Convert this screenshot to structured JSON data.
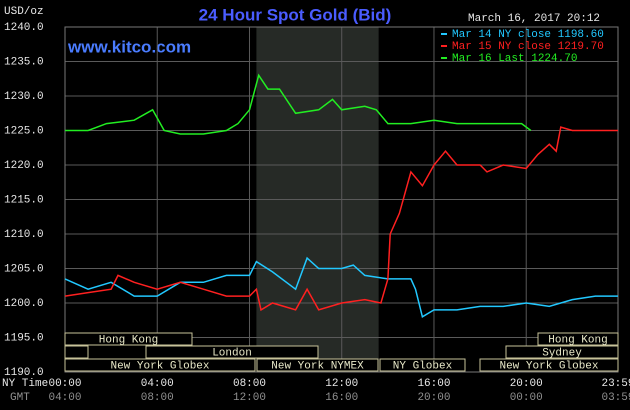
{
  "chart_data": {
    "type": "line",
    "title": "24 Hour Spot Gold (Bid)",
    "unit_label": "USD/oz",
    "timestamp": "March 16, 2017 20:12",
    "site": "www.kitco.com",
    "x_row_label": "NY Time",
    "gmt_row_label": "GMT",
    "gmt_labels": [
      "04:00",
      "08:00",
      "12:00",
      "16:00",
      "20:00",
      "00:00",
      "03:59"
    ],
    "xlim": [
      0,
      23.98
    ],
    "xticks": [
      {
        "value": 0,
        "label": "00:00"
      },
      {
        "value": 4,
        "label": "04:00"
      },
      {
        "value": 8,
        "label": "08:00"
      },
      {
        "value": 12,
        "label": "12:00"
      },
      {
        "value": 16,
        "label": "16:00"
      },
      {
        "value": 20,
        "label": "20:00"
      },
      {
        "value": 23.98,
        "label": "23:59"
      }
    ],
    "ylim": [
      1190,
      1240
    ],
    "yticks": [
      {
        "value": 1190,
        "label": "1190.0"
      },
      {
        "value": 1195,
        "label": "1195.0"
      },
      {
        "value": 1200,
        "label": "1200.0"
      },
      {
        "value": 1205,
        "label": "1205.0"
      },
      {
        "value": 1210,
        "label": "1210.0"
      },
      {
        "value": 1215,
        "label": "1215.0"
      },
      {
        "value": 1220,
        "label": "1220.0"
      },
      {
        "value": 1225,
        "label": "1225.0"
      },
      {
        "value": 1230,
        "label": "1230.0"
      },
      {
        "value": 1235,
        "label": "1235.0"
      },
      {
        "value": 1240,
        "label": "1240.0"
      }
    ],
    "grid": true,
    "shaded_x": [
      8.3,
      13.6
    ],
    "legend": "top-right",
    "sessions": [
      "Hong Kong",
      "Hong Kong",
      "London",
      "Sydney",
      "New York Globex",
      "New York NYMEX",
      "NY Globex",
      "New York Globex"
    ],
    "series": [
      {
        "name": "Mar 14 NY close 1198.60",
        "color": "#22c8ff",
        "x": [
          0,
          1,
          2,
          3,
          4,
          5,
          6,
          7,
          8,
          8.3,
          9,
          10,
          10.5,
          11,
          12,
          12.5,
          13,
          14,
          15,
          15.2,
          15.5,
          16,
          17,
          18,
          19,
          20,
          21,
          22,
          23,
          23.98
        ],
        "values": [
          1203.5,
          1202,
          1203,
          1201,
          1201,
          1203,
          1203,
          1204,
          1204,
          1206,
          1204.5,
          1202,
          1206.5,
          1205,
          1205,
          1205.5,
          1204,
          1203.5,
          1203.5,
          1202,
          1198,
          1199,
          1199,
          1199.5,
          1199.5,
          1200,
          1199.5,
          1200.5,
          1201,
          1201
        ]
      },
      {
        "name": "Mar 15 NY close 1219.70",
        "color": "#ff2020",
        "x": [
          0,
          1,
          2,
          2.3,
          3,
          4,
          5,
          6,
          7,
          8,
          8.3,
          8.5,
          9,
          10,
          10.5,
          11,
          12,
          13,
          13.7,
          14,
          14.1,
          14.5,
          15,
          15.5,
          16,
          16.5,
          17,
          18,
          18.3,
          19,
          20,
          20.5,
          21,
          21.3,
          21.5,
          22,
          23,
          23.98
        ],
        "values": [
          1201,
          1201.5,
          1202,
          1204,
          1203,
          1202,
          1203,
          1202,
          1201,
          1201,
          1202,
          1199,
          1200,
          1199,
          1202,
          1199,
          1200,
          1200.5,
          1200,
          1203.5,
          1210,
          1213,
          1219,
          1217,
          1220,
          1222,
          1220,
          1220,
          1219,
          1220,
          1219.5,
          1221.5,
          1223,
          1222,
          1225.5,
          1225,
          1225,
          1225
        ]
      },
      {
        "name": "Mar 16 Last 1224.70",
        "color": "#22ee22",
        "x": [
          0,
          1,
          1.8,
          3,
          3.8,
          4.3,
          5,
          6,
          7,
          7.5,
          8,
          8.4,
          8.8,
          9.3,
          10,
          11,
          11.6,
          12,
          13,
          13.5,
          14,
          15,
          16,
          17,
          18,
          19,
          19.8,
          20.2
        ],
        "values": [
          1225,
          1225,
          1226,
          1226.5,
          1228,
          1225,
          1224.5,
          1224.5,
          1225,
          1226,
          1228,
          1233,
          1231,
          1231,
          1227.5,
          1228,
          1229.5,
          1228,
          1228.5,
          1228,
          1226,
          1226,
          1226.5,
          1226,
          1226,
          1226,
          1226,
          1225
        ]
      }
    ]
  }
}
